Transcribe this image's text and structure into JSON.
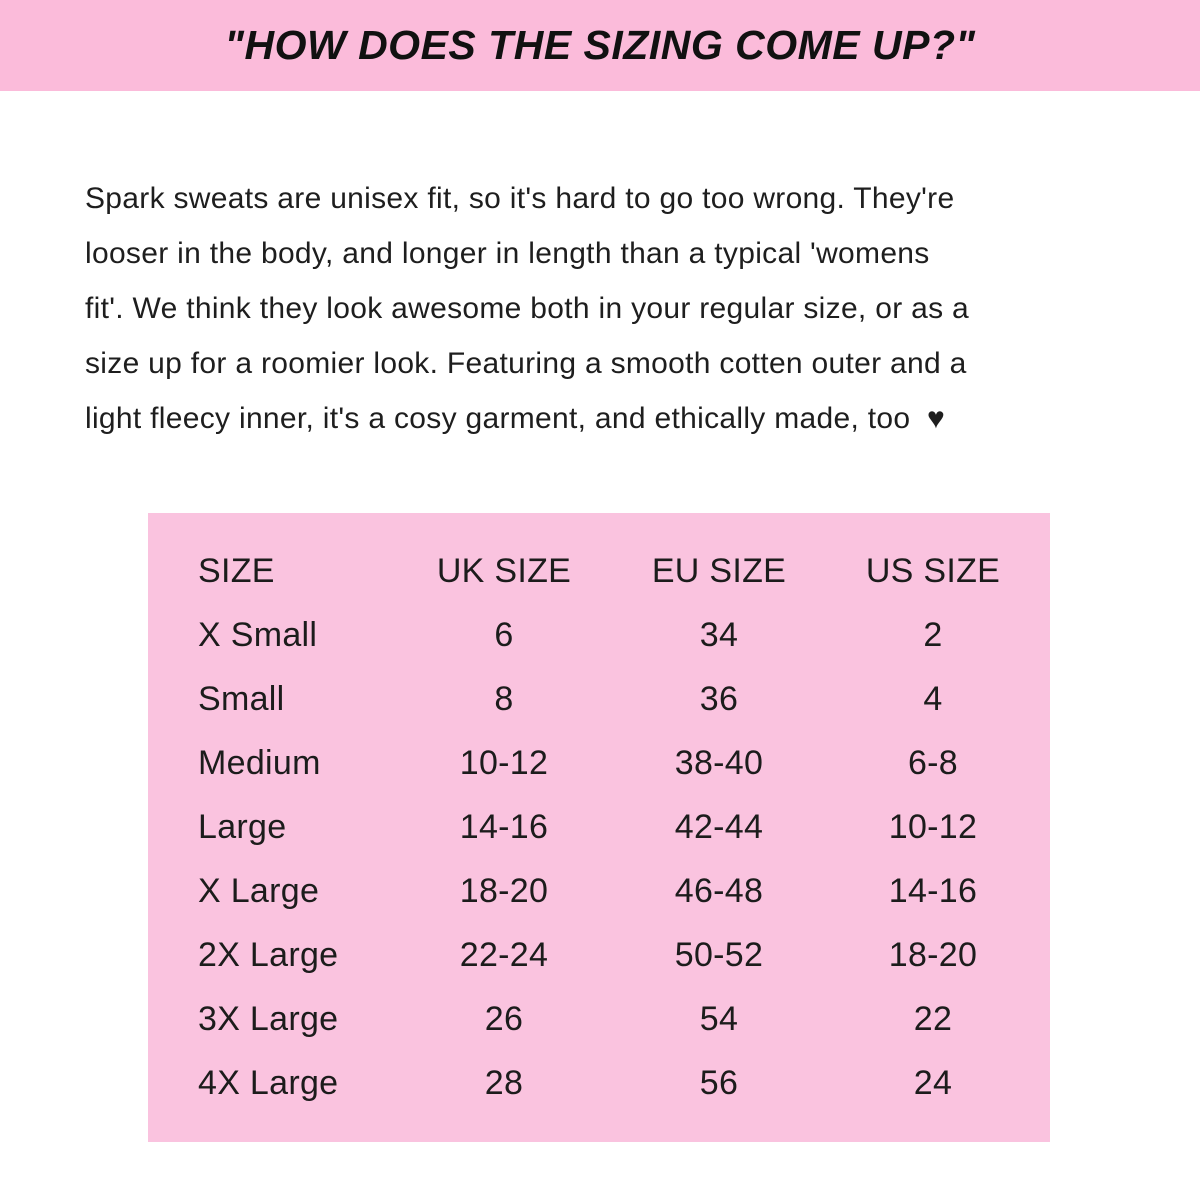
{
  "banner": {
    "title": "\"HOW DOES THE SIZING COME UP?\"",
    "bg_color": "#FBBBDA",
    "text_color": "#111111"
  },
  "paragraph": {
    "lines": [
      "Spark sweats are unisex fit, so it's hard to go too wrong. They're",
      "looser in the body, and longer in length than a typical 'womens",
      "fit'. We think they look awesome both in your regular size, or as a",
      "size up for a roomier look. Featuring a smooth cotten outer and a",
      "light fleecy inner, it's a cosy garment, and ethically made, too"
    ],
    "heart_icon": "♥"
  },
  "size_table": {
    "bg_color": "#FAC3DF",
    "headers": [
      "SIZE",
      "UK SIZE",
      "EU SIZE",
      "US SIZE"
    ],
    "rows": [
      {
        "size": "X Small",
        "uk": "6",
        "eu": "34",
        "us": "2"
      },
      {
        "size": "Small",
        "uk": "8",
        "eu": "36",
        "us": "4"
      },
      {
        "size": "Medium",
        "uk": "10-12",
        "eu": "38-40",
        "us": "6-8"
      },
      {
        "size": "Large",
        "uk": "14-16",
        "eu": "42-44",
        "us": "10-12"
      },
      {
        "size": "X Large",
        "uk": "18-20",
        "eu": "46-48",
        "us": "14-16"
      },
      {
        "size": "2X Large",
        "uk": "22-24",
        "eu": "50-52",
        "us": "18-20"
      },
      {
        "size": "3X Large",
        "uk": "26",
        "eu": "54",
        "us": "22"
      },
      {
        "size": "4X Large",
        "uk": "28",
        "eu": "56",
        "us": "24"
      }
    ]
  }
}
